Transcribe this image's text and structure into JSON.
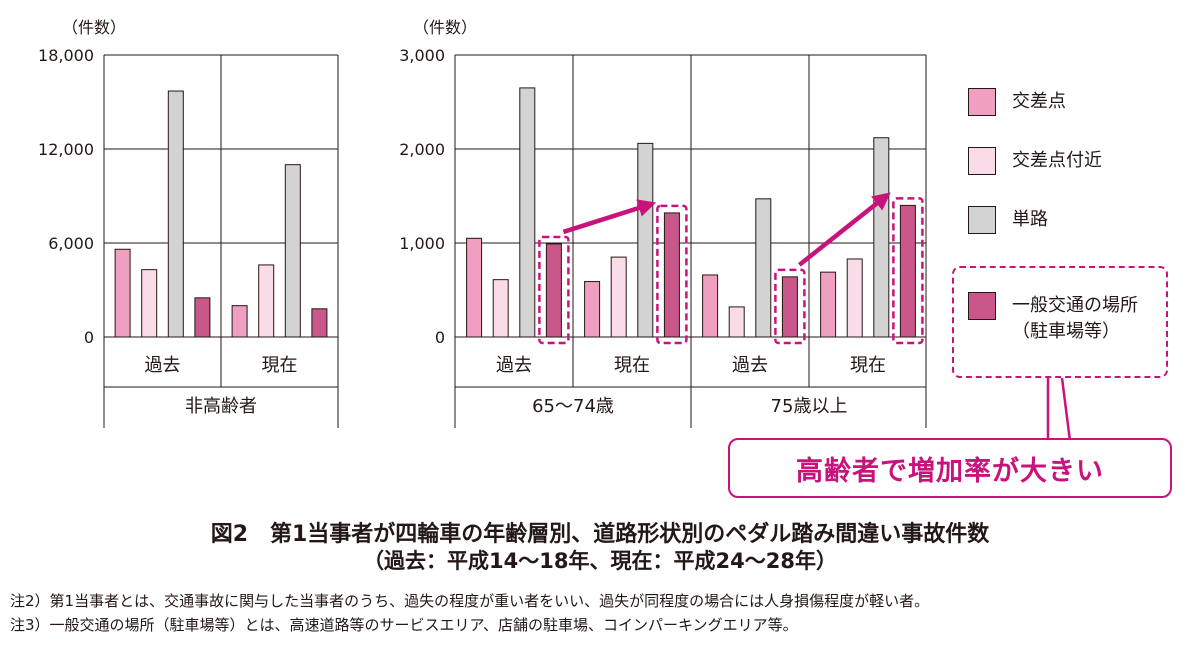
{
  "chart_data": [
    {
      "type": "bar",
      "ylabel": "（件数）",
      "ylim": [
        0,
        18000
      ],
      "yticks": [
        "18,000",
        "12,000",
        "6,000",
        "0"
      ],
      "group_label": "非高齢者",
      "categories": [
        "過去",
        "現在"
      ],
      "series": [
        {
          "name": "交差点",
          "values": [
            5600,
            2000
          ]
        },
        {
          "name": "交差点付近",
          "values": [
            4300,
            4600
          ]
        },
        {
          "name": "単路",
          "values": [
            15700,
            11000
          ]
        },
        {
          "name": "一般交通の場所（駐車場等）",
          "values": [
            2500,
            1800
          ]
        }
      ]
    },
    {
      "type": "bar",
      "ylabel": "（件数）",
      "ylim": [
        0,
        3000
      ],
      "yticks": [
        "3,000",
        "2,000",
        "1,000",
        "0"
      ],
      "groups": [
        {
          "label": "65～74歳",
          "categories": [
            "過去",
            "現在"
          ]
        },
        {
          "label": "75歳以上",
          "categories": [
            "過去",
            "現在"
          ]
        }
      ],
      "series": [
        {
          "name": "交差点",
          "values": [
            1050,
            590,
            660,
            690
          ]
        },
        {
          "name": "交差点付近",
          "values": [
            610,
            850,
            320,
            830
          ]
        },
        {
          "name": "単路",
          "values": [
            2650,
            2060,
            1470,
            2120
          ]
        },
        {
          "name": "一般交通の場所（駐車場等）",
          "values": [
            990,
            1320,
            640,
            1400
          ]
        }
      ]
    }
  ],
  "legend": [
    {
      "label": "交差点",
      "color": "#ef9fbf"
    },
    {
      "label": "交差点付近",
      "color": "#fadbe8"
    },
    {
      "label": "単路",
      "color": "#d3d3d4"
    },
    {
      "label": "一般交通の場所",
      "label2": "（駐車場等）",
      "color": "#c9578a"
    }
  ],
  "callout": "高齢者で増加率が大きい",
  "accent_color": "#c8137d",
  "caption": {
    "line1": "図2　第1当事者が四輪車の年齢層別、道路形状別のペダル踏み間違い事故件数",
    "line2": "（過去：平成14～18年、現在：平成24～28年）"
  },
  "notes": [
    "注2）第1当事者とは、交通事故に関与した当事者のうち、過失の程度が重い者をいい、過失が同程度の場合には人身損傷程度が軽い者。",
    "注3）一般交通の場所（駐車場等）とは、高速道路等のサービスエリア、店舗の駐車場、コインパーキングエリア等。"
  ]
}
